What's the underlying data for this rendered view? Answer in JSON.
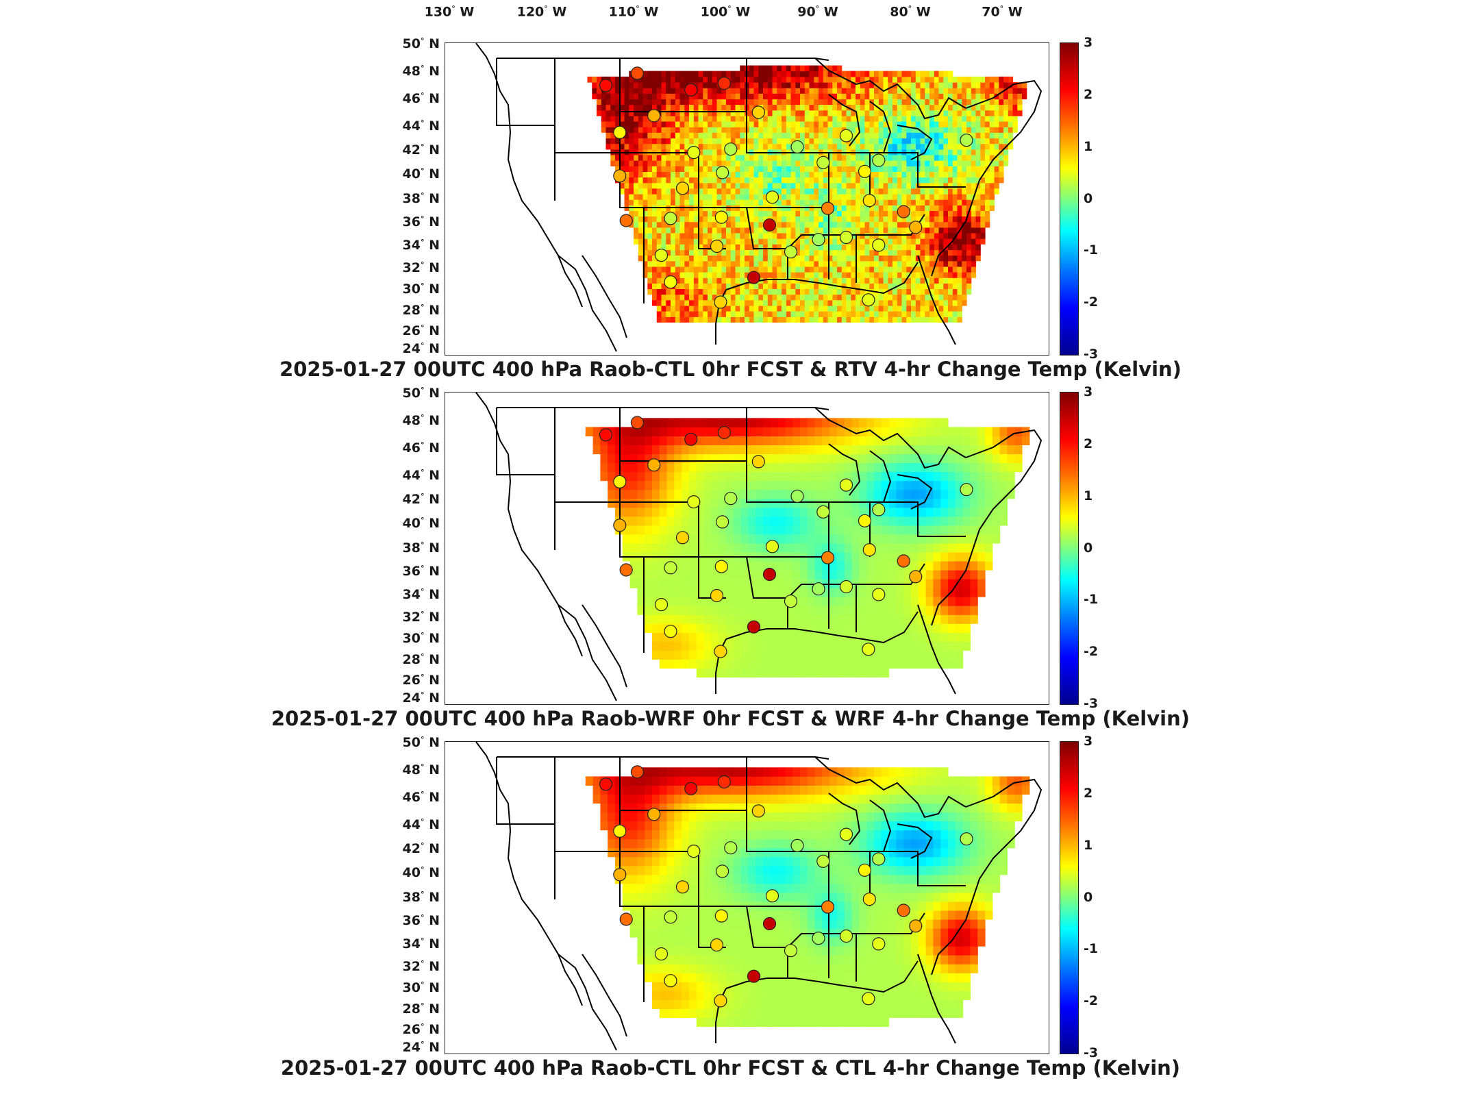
{
  "lon_labels": [
    "130",
    "120",
    "110",
    "100",
    "90",
    "80",
    "70"
  ],
  "lon_suffix": "W",
  "lat_labels": [
    "50",
    "48",
    "46",
    "44",
    "42",
    "40",
    "38",
    "36",
    "34",
    "32",
    "30",
    "28",
    "26",
    "24"
  ],
  "lat_suffix": "N",
  "degree": "°",
  "colorbar": {
    "ticks": [
      "3",
      "2",
      "1",
      "0",
      "-1",
      "-2",
      "-3"
    ],
    "range": [
      -3,
      3
    ],
    "colors": [
      "#800000",
      "#ff0000",
      "#ff7f00",
      "#ffff00",
      "#7fff7f",
      "#00ffff",
      "#007fff",
      "#0000ff",
      "#00008f"
    ]
  },
  "panels": [
    {
      "title": "2025-01-27 00UTC 400 hPa Raob-CTL 0hr FCST & RTV 4-hr Change Temp (Kelvin)",
      "field_style": "noisy"
    },
    {
      "title": "2025-01-27 00UTC 400 hPa Raob-WRF 0hr FCST & WRF 4-hr Change Temp (Kelvin)",
      "field_style": "smooth"
    },
    {
      "title": "2025-01-27 00UTC 400 hPa Raob-CTL 0hr FCST & CTL 4-hr Change Temp (Kelvin)",
      "field_style": "smooth"
    }
  ],
  "stations": [
    {
      "lon": -110.0,
      "lat": 47.2,
      "value": 2.2
    },
    {
      "lon": -106.6,
      "lat": 48.3,
      "value": 1.8
    },
    {
      "lon": -100.8,
      "lat": 46.8,
      "value": 2.3
    },
    {
      "lon": -97.2,
      "lat": 47.4,
      "value": 2.0
    },
    {
      "lon": -104.8,
      "lat": 44.5,
      "value": 1.2
    },
    {
      "lon": -108.5,
      "lat": 43.0,
      "value": 0.8
    },
    {
      "lon": -100.5,
      "lat": 41.2,
      "value": 0.6
    },
    {
      "lon": -96.5,
      "lat": 41.5,
      "value": 0.3
    },
    {
      "lon": -93.5,
      "lat": 44.8,
      "value": 1.0
    },
    {
      "lon": -89.3,
      "lat": 41.7,
      "value": 0.2
    },
    {
      "lon": -86.5,
      "lat": 40.3,
      "value": 0.4
    },
    {
      "lon": -84.0,
      "lat": 42.7,
      "value": 0.6
    },
    {
      "lon": -80.5,
      "lat": 40.5,
      "value": 0.3
    },
    {
      "lon": -82.0,
      "lat": 39.5,
      "value": 0.8
    },
    {
      "lon": -108.5,
      "lat": 39.1,
      "value": 1.2
    },
    {
      "lon": -101.7,
      "lat": 38.0,
      "value": 1.0
    },
    {
      "lon": -97.4,
      "lat": 39.4,
      "value": 0.4
    },
    {
      "lon": -92.0,
      "lat": 37.2,
      "value": 0.6
    },
    {
      "lon": -107.8,
      "lat": 35.1,
      "value": 1.6
    },
    {
      "lon": -103.0,
      "lat": 35.3,
      "value": 0.4
    },
    {
      "lon": -97.5,
      "lat": 35.4,
      "value": 0.8
    },
    {
      "lon": -92.3,
      "lat": 34.7,
      "value": 2.6
    },
    {
      "lon": -86.0,
      "lat": 36.2,
      "value": 1.5
    },
    {
      "lon": -81.5,
      "lat": 36.9,
      "value": 0.9
    },
    {
      "lon": -77.8,
      "lat": 35.9,
      "value": 1.6
    },
    {
      "lon": -104.0,
      "lat": 32.0,
      "value": 0.6
    },
    {
      "lon": -98.0,
      "lat": 32.8,
      "value": 1.0
    },
    {
      "lon": -90.0,
      "lat": 32.3,
      "value": 0.4
    },
    {
      "lon": -87.0,
      "lat": 33.4,
      "value": 0.2
    },
    {
      "lon": -84.0,
      "lat": 33.6,
      "value": 0.5
    },
    {
      "lon": -80.5,
      "lat": 32.9,
      "value": 0.6
    },
    {
      "lon": -94.0,
      "lat": 30.0,
      "value": 2.6
    },
    {
      "lon": -103.0,
      "lat": 29.6,
      "value": 0.7
    },
    {
      "lon": -97.6,
      "lat": 27.8,
      "value": 1.0
    },
    {
      "lon": -81.6,
      "lat": 28.0,
      "value": 0.6
    },
    {
      "lon": -76.5,
      "lat": 34.5,
      "value": 1.2
    },
    {
      "lon": -71.0,
      "lat": 42.3,
      "value": 0.3
    }
  ]
}
